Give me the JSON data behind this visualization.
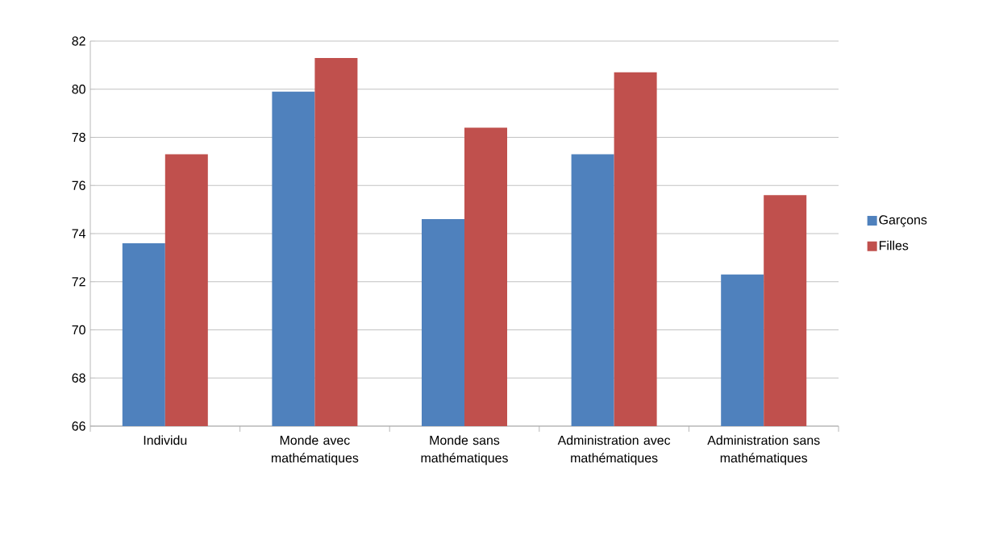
{
  "chart_data": {
    "type": "bar",
    "categories": [
      "Individu",
      "Monde avec mathématiques",
      "Monde sans mathématiques",
      "Administration avec mathématiques",
      "Administration sans mathématiques"
    ],
    "series": [
      {
        "name": "Garçons",
        "color": "#4f81bd",
        "values": [
          73.6,
          79.9,
          74.6,
          77.3,
          72.3
        ]
      },
      {
        "name": "Filles",
        "color": "#c0504d",
        "values": [
          77.3,
          81.3,
          78.4,
          80.7,
          75.6
        ]
      }
    ],
    "ylim": [
      66,
      82
    ],
    "yticks": [
      66,
      68,
      70,
      72,
      74,
      76,
      78,
      80,
      82
    ],
    "grid": "y",
    "legend": "right"
  }
}
